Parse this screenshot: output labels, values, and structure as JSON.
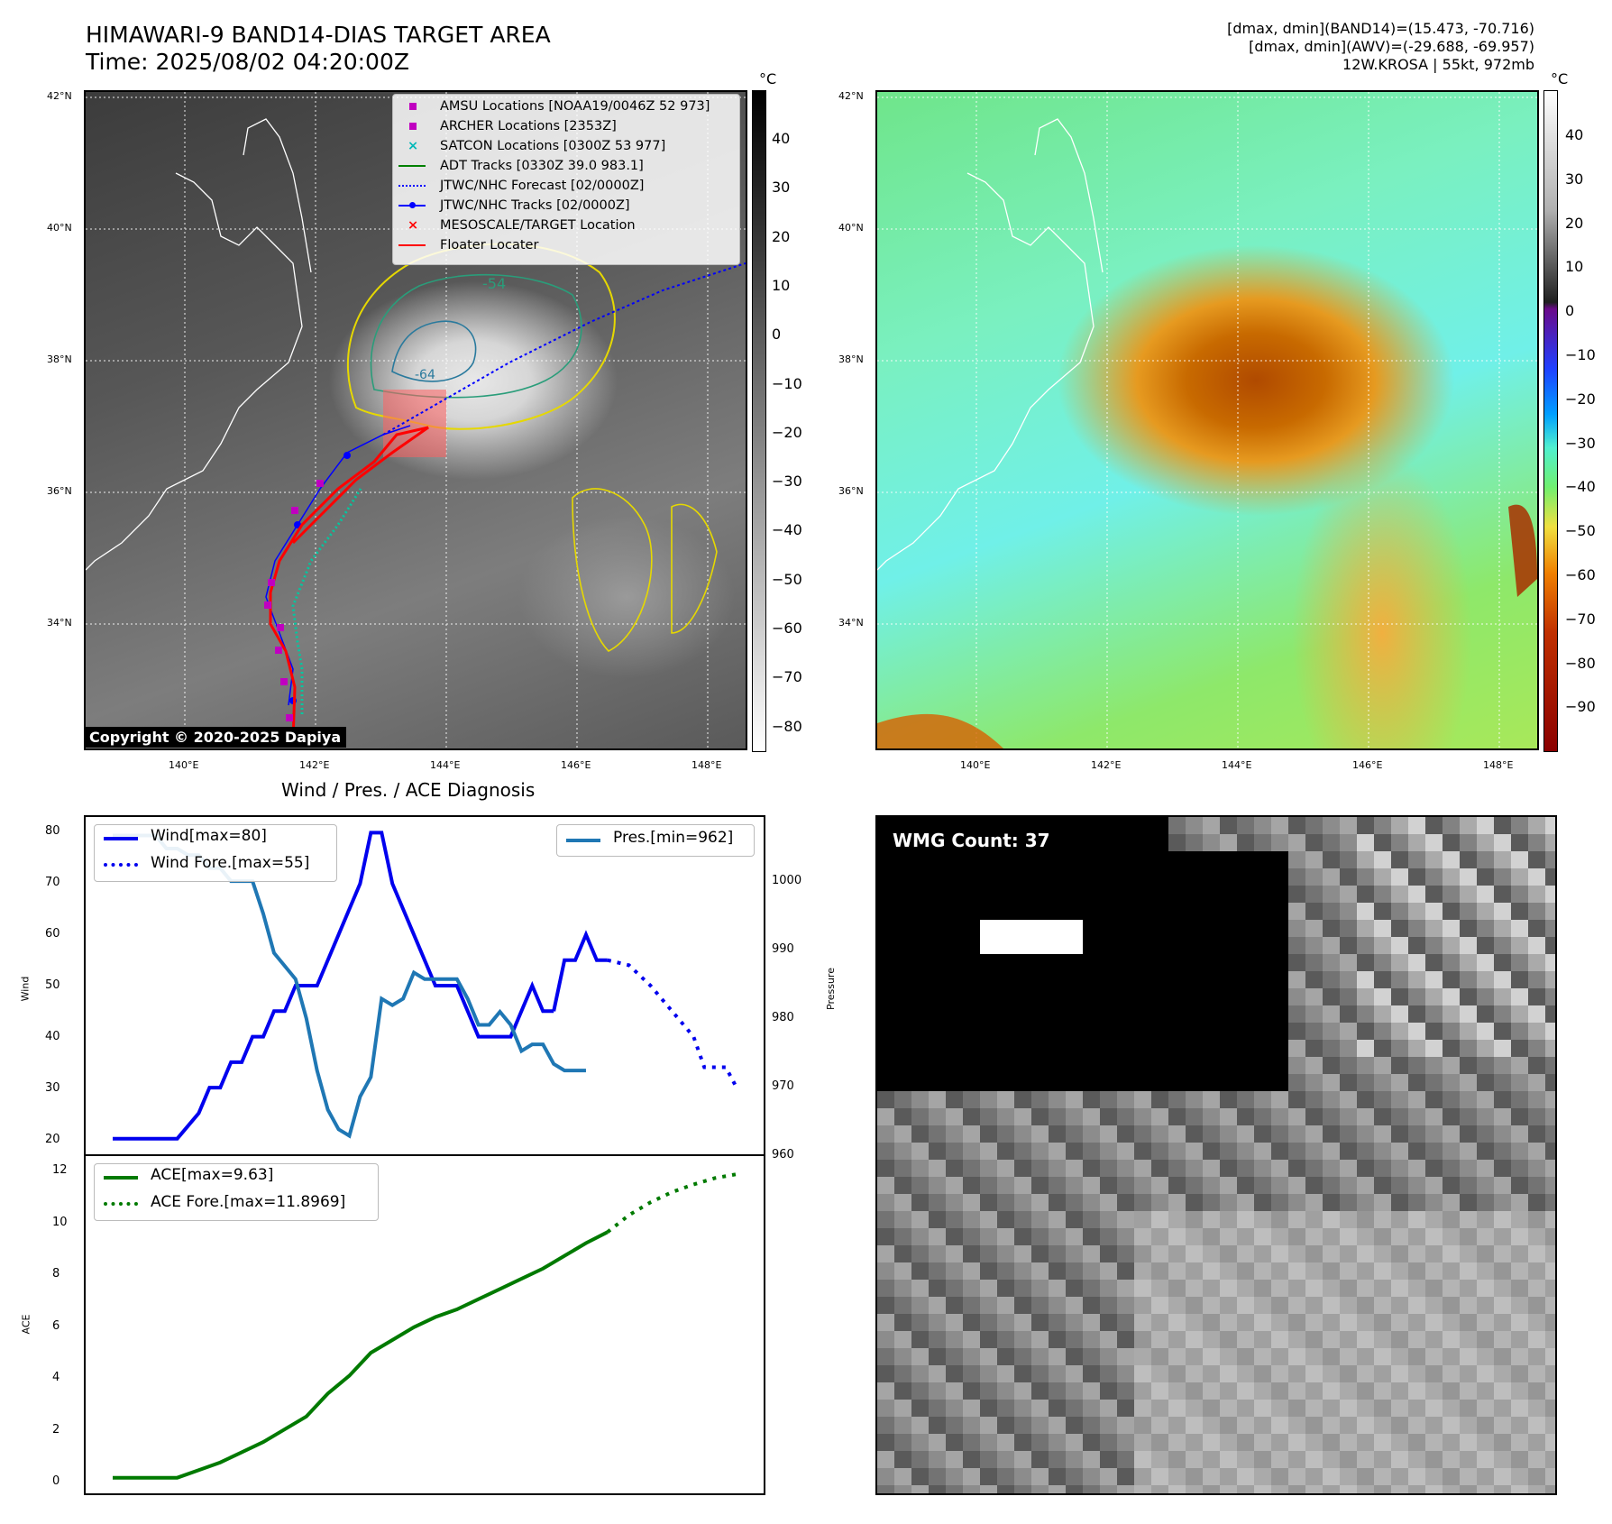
{
  "header": {
    "title_line1": "HIMAWARI-9 BAND14-DIAS TARGET AREA",
    "title_line2": "Time: 2025/08/02 04:20:00Z",
    "meta_line1": "[dmax, dmin](BAND14)=(15.473, -70.716)",
    "meta_line2": "[dmax, dmin](AWV)=(-29.688, -69.957)",
    "meta_line3": "12W.KROSA | 55kt, 972mb"
  },
  "map": {
    "lat_ticks": [
      "42°N",
      "40°N",
      "38°N",
      "36°N",
      "34°N"
    ],
    "lon_ticks": [
      "140°E",
      "142°E",
      "144°E",
      "146°E",
      "148°E"
    ],
    "contour_labels": [
      "-54",
      "-64"
    ],
    "copyright": "Copyright © 2020-2025 Dapiya",
    "legend": [
      {
        "label": "AMSU Locations [NOAA19/0046Z 52 973]",
        "marker": "square",
        "color": "#c000c0"
      },
      {
        "label": "ARCHER Locations [2353Z]",
        "marker": "square",
        "color": "#c000c0"
      },
      {
        "label": "SATCON Locations [0300Z 53 977]",
        "marker": "x",
        "color": "#00b8b8"
      },
      {
        "label": "ADT Tracks [0330Z 39.0 983.1]",
        "marker": "line",
        "color": "#008000"
      },
      {
        "label": "JTWC/NHC Forecast [02/0000Z]",
        "marker": "dotted",
        "color": "#0000ff"
      },
      {
        "label": "JTWC/NHC Tracks [02/0000Z]",
        "marker": "line-dot",
        "color": "#0000ff"
      },
      {
        "label": "MESOSCALE/TARGET Location",
        "marker": "x",
        "color": "#ff0000"
      },
      {
        "label": "Floater Locater",
        "marker": "line",
        "color": "#ff0000"
      }
    ]
  },
  "colorbar_gray": {
    "unit": "°C",
    "ticks": [
      "40",
      "30",
      "20",
      "10",
      "0",
      "−10",
      "−20",
      "−30",
      "−40",
      "−50",
      "−60",
      "−70",
      "−80"
    ]
  },
  "colorbar_color": {
    "unit": "°C",
    "ticks": [
      "40",
      "30",
      "20",
      "10",
      "0",
      "−10",
      "−20",
      "−30",
      "−40",
      "−50",
      "−60",
      "−70",
      "−80",
      "−90"
    ]
  },
  "diagnosis": {
    "title": "Wind / Pres. / ACE Diagnosis",
    "wind_ylabel": "Wind",
    "pres_ylabel": "Pressure",
    "ace_ylabel": "ACE",
    "wind_ticks": [
      "80",
      "70",
      "60",
      "50",
      "40",
      "30",
      "20"
    ],
    "pres_ticks": [
      "1000",
      "990",
      "980",
      "970",
      "960"
    ],
    "ace_ticks": [
      "12",
      "10",
      "8",
      "6",
      "4",
      "2",
      "0"
    ],
    "legend_wind": "Wind[max=80]",
    "legend_wind_fore": "Wind Fore.[max=55]",
    "legend_pres": "Pres.[min=962]",
    "legend_ace": "ACE[max=9.63]",
    "legend_ace_fore": "ACE Fore.[max=11.8969]"
  },
  "wmg": {
    "label": "WMG Count: 37"
  },
  "colors": {
    "wind": "#0000ee",
    "pres": "#1f77b4",
    "ace": "#007a00",
    "track": "#ff0000"
  },
  "chart_data": [
    {
      "type": "line",
      "title": "Wind / Pres. / ACE Diagnosis",
      "ylabel": "Wind",
      "ylim": [
        18,
        82
      ],
      "series": [
        {
          "name": "Wind[max=80]",
          "style": "solid",
          "x": [
            0,
            3,
            6,
            8,
            9,
            10,
            11,
            12,
            13,
            14,
            15,
            16,
            17,
            18,
            19,
            20,
            21,
            22,
            23,
            24,
            25,
            26,
            28,
            30,
            32,
            33,
            34,
            35,
            36,
            37,
            38,
            39,
            40,
            41
          ],
          "y": [
            20,
            20,
            20,
            25,
            30,
            30,
            35,
            35,
            40,
            40,
            45,
            45,
            50,
            50,
            50,
            55,
            60,
            65,
            70,
            80,
            80,
            70,
            60,
            50,
            50,
            45,
            40,
            40,
            40,
            40,
            45,
            50,
            45,
            45
          ]
        },
        {
          "name": "Wind[max=80] cont.",
          "style": "solid",
          "x": [
            41,
            42,
            43,
            44,
            45,
            46
          ],
          "y": [
            45,
            55,
            55,
            60,
            55,
            55
          ]
        },
        {
          "name": "Wind Fore.[max=55]",
          "style": "dotted",
          "x": [
            46,
            48,
            50,
            52,
            54,
            55,
            57,
            58
          ],
          "y": [
            55,
            54,
            50,
            45,
            40,
            34,
            34,
            30
          ]
        }
      ]
    },
    {
      "type": "line",
      "ylabel": "Pressure",
      "ylim": [
        960,
        1010
      ],
      "series": [
        {
          "name": "Pres.[min=962]",
          "style": "solid",
          "x": [
            0,
            2,
            4,
            5,
            6,
            7,
            8,
            9,
            10,
            11,
            12,
            13,
            14,
            15,
            16,
            17,
            18,
            19,
            20,
            21,
            22,
            23,
            24,
            25,
            26,
            27,
            28,
            29,
            30,
            31,
            32,
            33,
            34,
            35,
            36,
            37,
            38,
            39,
            40,
            41,
            42,
            43,
            44
          ],
          "y": [
            1008,
            1008,
            1008,
            1006,
            1006,
            1005,
            1005,
            1003,
            1003,
            1001,
            1001,
            1001,
            996,
            990,
            988,
            986,
            980,
            972,
            966,
            963,
            962,
            968,
            971,
            983,
            982,
            983,
            987,
            986,
            986,
            986,
            986,
            983,
            979,
            979,
            981,
            979,
            975,
            976,
            976,
            973,
            972,
            972,
            972
          ]
        }
      ]
    },
    {
      "type": "line",
      "ylabel": "ACE",
      "ylim": [
        -0.4,
        12.4
      ],
      "series": [
        {
          "name": "ACE[max=9.63]",
          "style": "solid",
          "x": [
            0,
            3,
            6,
            8,
            10,
            12,
            14,
            16,
            18,
            20,
            22,
            24,
            26,
            28,
            30,
            32,
            34,
            36,
            38,
            40,
            42,
            44,
            46
          ],
          "y": [
            0,
            0,
            0,
            0.3,
            0.6,
            1.0,
            1.4,
            1.9,
            2.4,
            3.3,
            4.0,
            4.9,
            5.4,
            5.9,
            6.3,
            6.6,
            7.0,
            7.4,
            7.8,
            8.2,
            8.7,
            9.2,
            9.63
          ]
        },
        {
          "name": "ACE Fore.[max=11.8969]",
          "style": "dotted",
          "x": [
            46,
            48,
            50,
            52,
            54,
            56,
            58
          ],
          "y": [
            9.63,
            10.3,
            10.8,
            11.2,
            11.5,
            11.75,
            11.9
          ]
        }
      ]
    }
  ]
}
